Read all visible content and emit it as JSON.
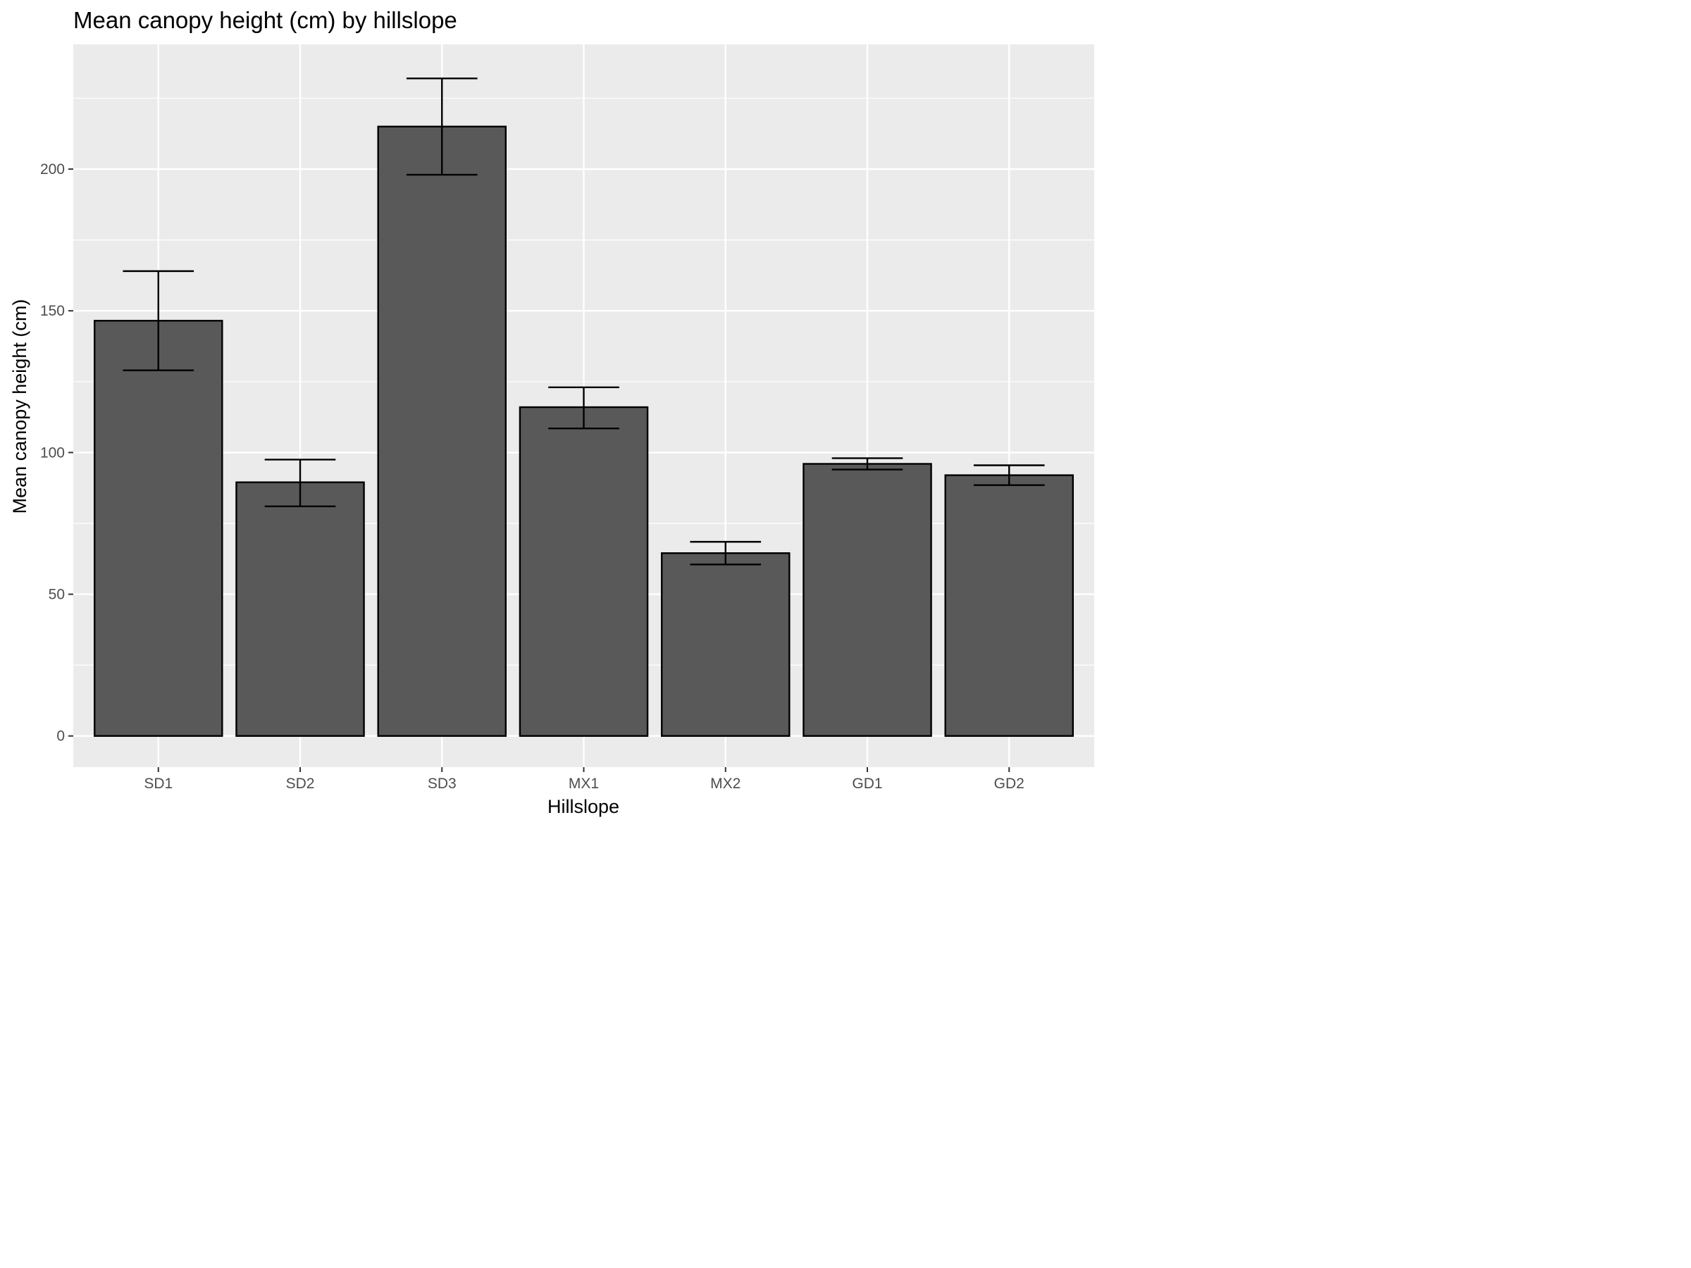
{
  "chart_data": {
    "type": "bar",
    "title": "Mean canopy height (cm) by hillslope",
    "xlabel": "Hillslope",
    "ylabel": "Mean canopy height (cm)",
    "categories": [
      "SD1",
      "SD2",
      "SD3",
      "MX1",
      "MX2",
      "GD1",
      "GD2"
    ],
    "values": [
      146.5,
      89.5,
      215,
      116,
      64.5,
      96,
      92
    ],
    "error_lower": [
      129,
      81,
      198,
      108.5,
      60.5,
      94,
      88.5
    ],
    "error_upper": [
      164,
      97.5,
      232,
      123,
      68.5,
      98,
      95.5
    ],
    "ylim": [
      -11,
      244
    ],
    "yticks": [
      0,
      50,
      100,
      150,
      200
    ],
    "ytick_labels": [
      "0",
      "50",
      "100",
      "150",
      "200"
    ],
    "grid": true,
    "legend": "none",
    "colors": {
      "bar_fill": "#595959",
      "bar_stroke": "#000000",
      "panel_bg": "#ebebeb",
      "grid": "#ffffff"
    }
  }
}
